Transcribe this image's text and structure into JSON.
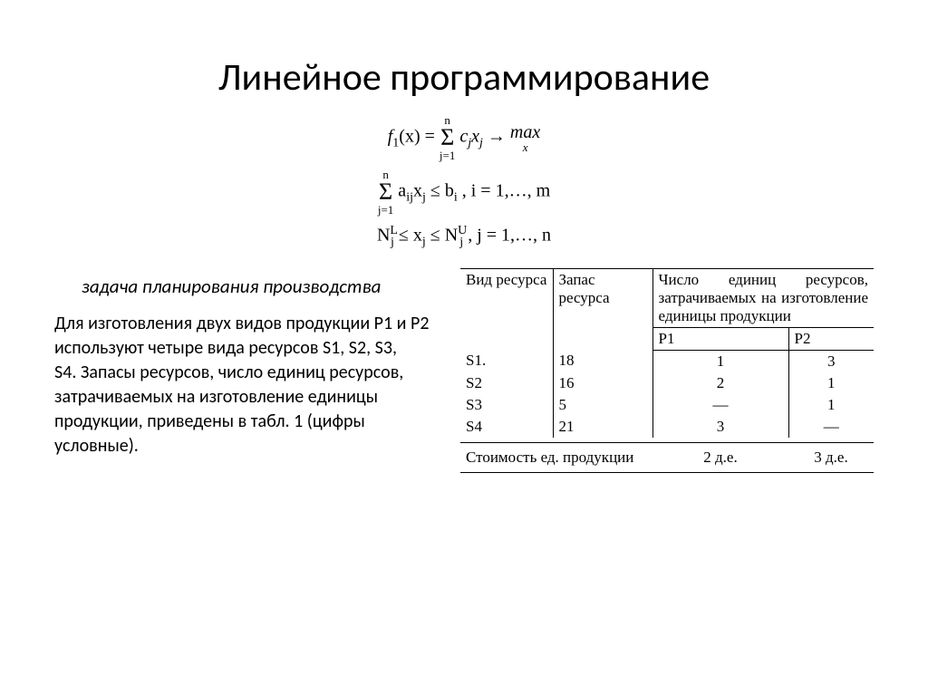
{
  "title": "Линейное программирование",
  "formulas": {
    "f1_lhs": "f",
    "f1_sub": "1",
    "f1_arg": "(x) =",
    "sum_top": "n",
    "sum_bot": "j=1",
    "term1": "c",
    "term1_sub": "j",
    "term2": "x",
    "term2_sub": "j",
    "arrow": " → ",
    "max": "max",
    "max_sub": "x",
    "sum2_top": "n",
    "sum2_bot": "j=1",
    "a": "a",
    "a_sub": "ij",
    "x": "x",
    "x_sub": "j",
    "leq": " ≤ ",
    "b": "b",
    "b_sub": "i",
    "i_range": ",  i = 1,…, m",
    "N1": "N",
    "N1_sup": "L",
    "N1_sub": "j",
    "xj": "x",
    "xj_sub": "j",
    "N2": "N",
    "N2_sup": "U",
    "N2_sub": "j",
    "j_range": ",  j = 1,…, n"
  },
  "subheading": "задача планирования производства",
  "body": {
    "p1": "Для изготовления двух видов продукции Р1 и Р2 используют четыре вида ресурсов S1, S2, S3,",
    "p2": "S4. Запасы ресурсов, число единиц ресурсов, затрачиваемых на изготовление единицы",
    "p3": "продукции, приведены в табл. 1 (цифры условные)."
  },
  "table": {
    "header": {
      "kind": "Вид ресурса",
      "stock": "Запас ресурса",
      "units": "Число единиц ресурсов, затрачиваемых на изготовление единицы продукции",
      "p1": "P1",
      "p2": "P2"
    },
    "rows": [
      {
        "name": "S1.",
        "stock": "18",
        "p1": "1",
        "p2": "3"
      },
      {
        "name": "S2",
        "stock": "16",
        "p1": "2",
        "p2": "1"
      },
      {
        "name": "S3",
        "stock": "5",
        "p1": "—",
        "p2": "1"
      },
      {
        "name": "S4",
        "stock": "21",
        "p1": "3",
        "p2": "—"
      }
    ],
    "cost": {
      "label": "Стоимость ед. продукции",
      "p1": "2 д.е.",
      "p2": "3 д.е."
    }
  },
  "colors": {
    "text": "#000000",
    "background": "#ffffff",
    "border": "#000000"
  }
}
